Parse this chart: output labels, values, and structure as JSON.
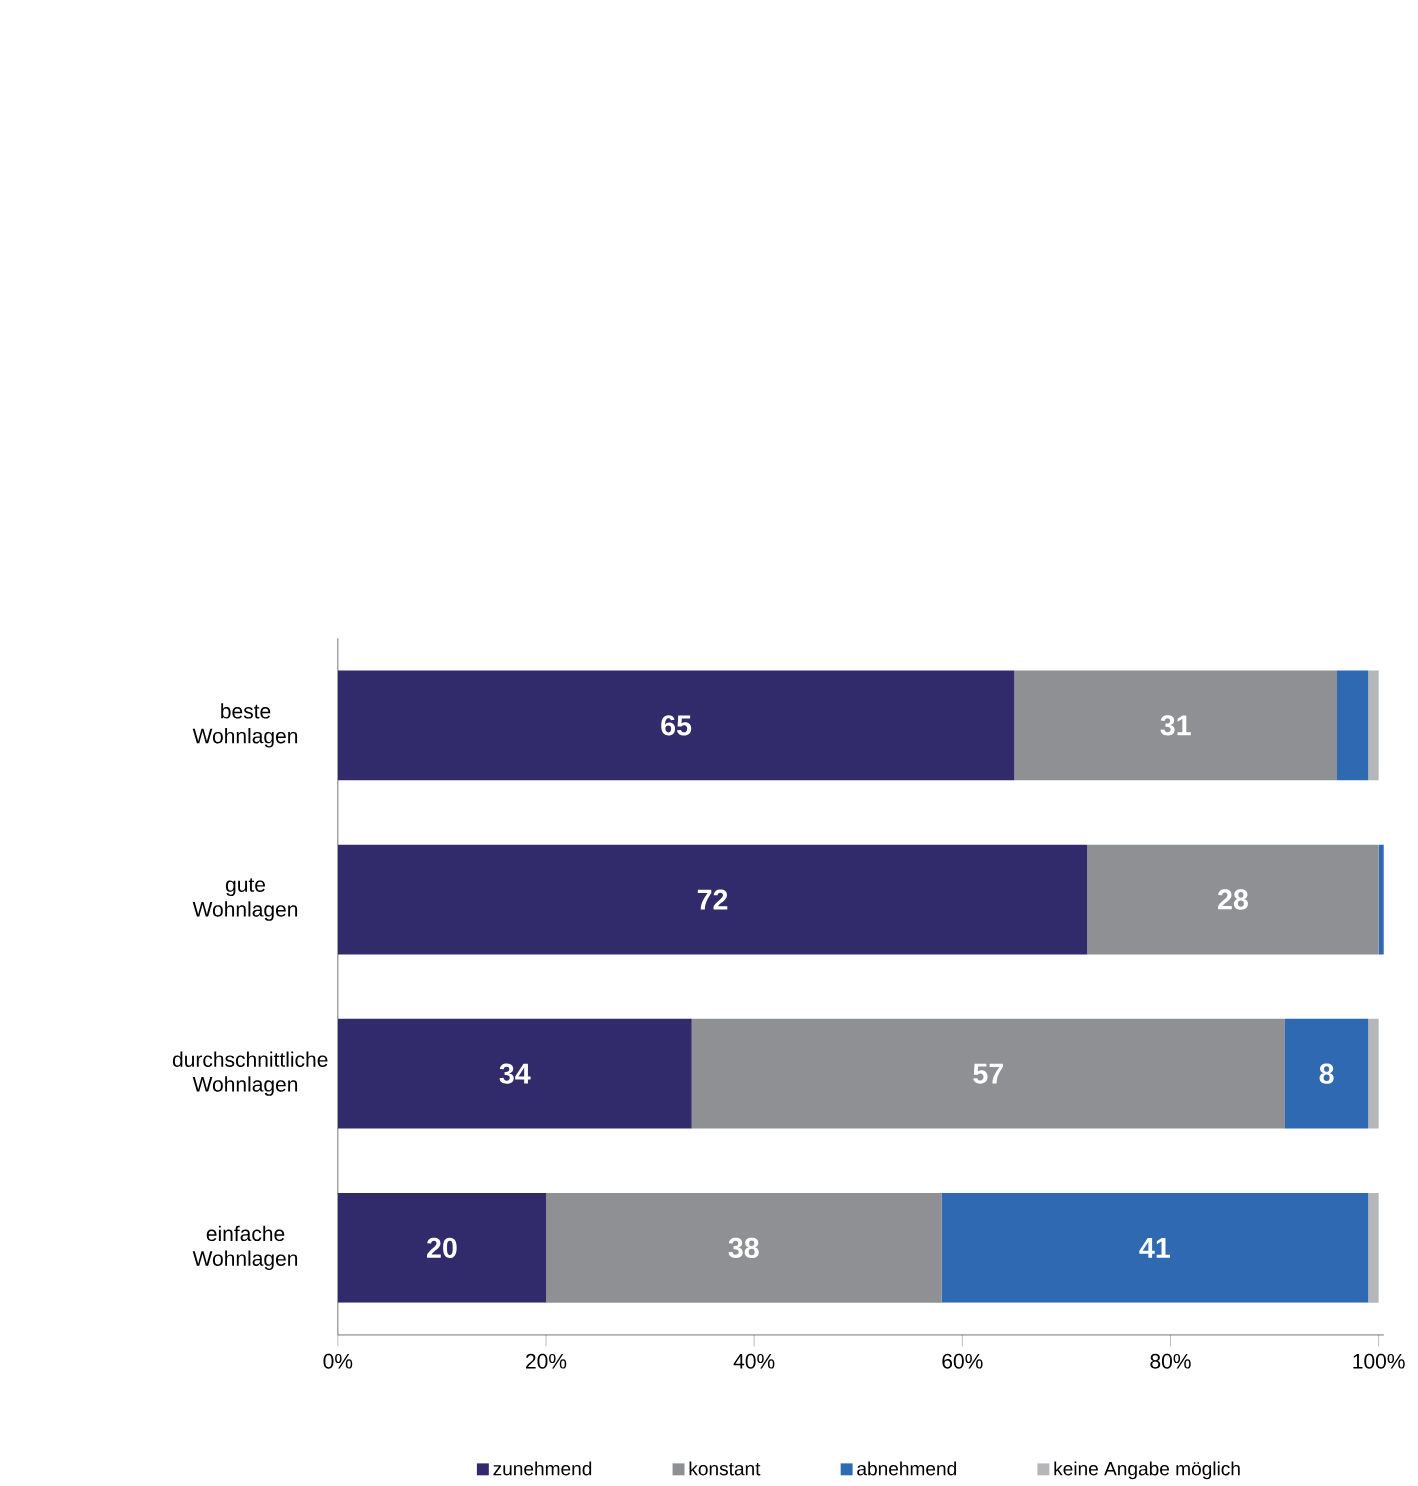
{
  "chart_data": {
    "type": "bar",
    "orientation": "horizontal",
    "stacked": true,
    "categories": [
      "beste Wohnlagen",
      "gute Wohnlagen",
      "durchschnittliche Wohnlagen",
      "einfache Wohnlagen"
    ],
    "series": [
      {
        "name": "zunehmend",
        "color": "#312a6b",
        "values": [
          65,
          72,
          34,
          20
        ],
        "value_labels": [
          "65",
          "72",
          "34",
          "20"
        ]
      },
      {
        "name": "konstant",
        "color": "#8f9094",
        "values": [
          31,
          28,
          57,
          38
        ],
        "value_labels": [
          "31",
          "28",
          "57",
          "38"
        ]
      },
      {
        "name": "abnehmend",
        "color": "#2e69b2",
        "values": [
          3,
          0.5,
          8,
          41
        ],
        "value_labels": [
          null,
          null,
          "8",
          "41"
        ]
      },
      {
        "name": "keine Angabe möglich",
        "color": "#b5b6b9",
        "values": [
          1,
          0,
          1,
          1
        ],
        "value_labels": [
          null,
          null,
          null,
          null
        ]
      }
    ],
    "xlim": [
      0,
      100.5
    ],
    "xticks": [
      {
        "value": 0,
        "label": "0%"
      },
      {
        "value": 20,
        "label": "20%"
      },
      {
        "value": 40,
        "label": "40%"
      },
      {
        "value": 60,
        "label": "60%"
      },
      {
        "value": 80,
        "label": "80%"
      },
      {
        "value": 100,
        "label": "100%"
      }
    ],
    "grid": false,
    "legend": "bottom"
  }
}
